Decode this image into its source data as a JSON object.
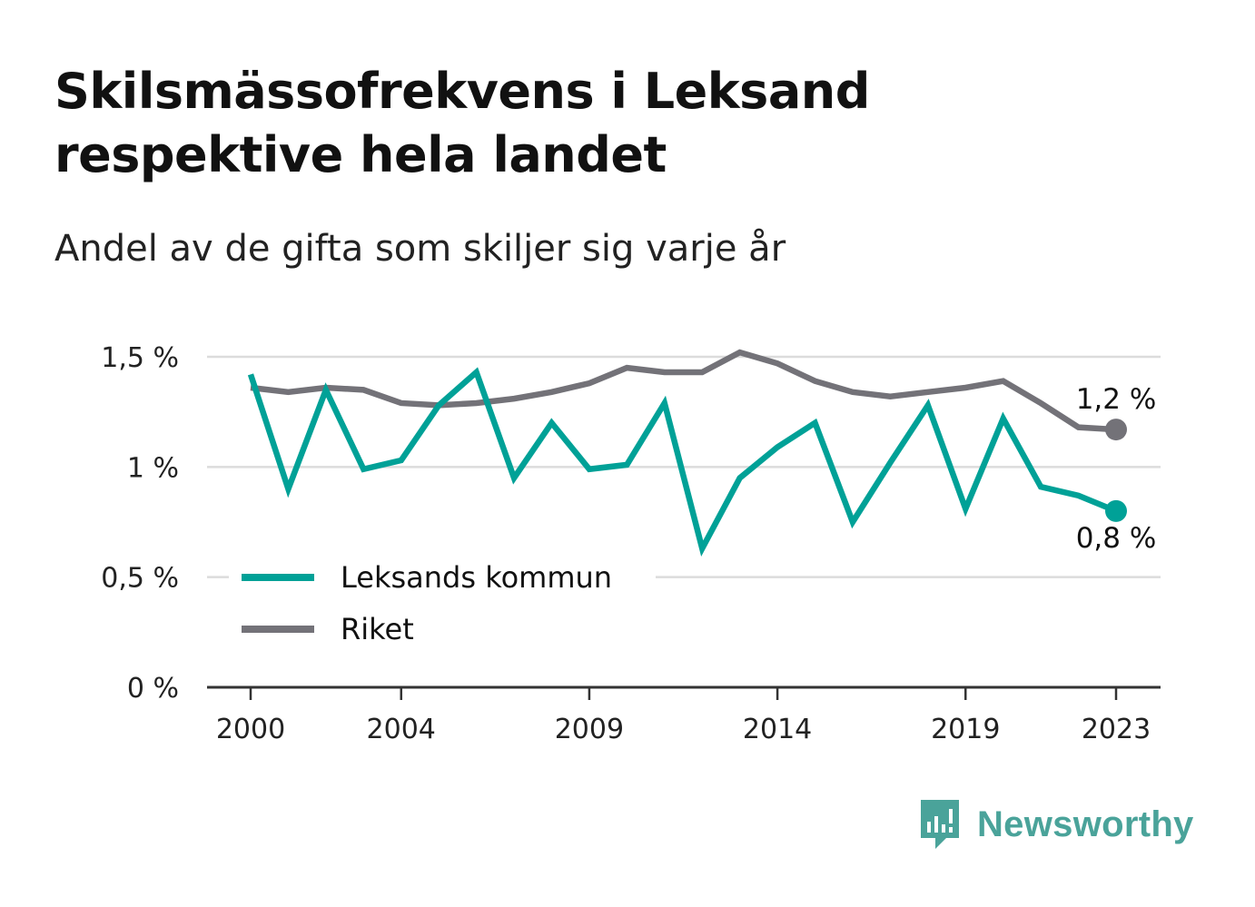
{
  "header": {
    "title_line1": "Skilsmässofrekvens i Leksand",
    "title_line2": "respektive hela landet",
    "subtitle": "Andel av de gifta som skiljer sig varje år"
  },
  "brand": {
    "name": "Newsworthy",
    "icon": "newsworthy-logo-icon",
    "color": "#4aa39a"
  },
  "chart_data": {
    "type": "line",
    "x": [
      2000,
      2001,
      2002,
      2003,
      2004,
      2005,
      2006,
      2007,
      2008,
      2009,
      2010,
      2011,
      2012,
      2013,
      2014,
      2015,
      2016,
      2017,
      2018,
      2019,
      2020,
      2021,
      2022,
      2023
    ],
    "x_tick_values": [
      2000,
      2004,
      2009,
      2014,
      2019,
      2023
    ],
    "x_tick_labels": [
      "2000",
      "2004",
      "2009",
      "2014",
      "2019",
      "2023"
    ],
    "y_tick_values": [
      0,
      0.5,
      1,
      1.5
    ],
    "y_tick_labels": [
      "0 %",
      "0,5 %",
      "1 %",
      "1,5 %"
    ],
    "ylim": [
      0,
      1.5
    ],
    "grid": true,
    "legend_position": "bottom-left",
    "series": [
      {
        "name": "Leksands kommun",
        "color": "#00a197",
        "values": [
          1.42,
          0.9,
          1.35,
          0.99,
          1.03,
          1.28,
          1.43,
          0.95,
          1.2,
          0.99,
          1.01,
          1.29,
          0.63,
          0.95,
          1.09,
          1.2,
          0.75,
          1.02,
          1.28,
          0.81,
          1.22,
          0.91,
          0.87,
          0.8
        ],
        "end_label": "0,8 %"
      },
      {
        "name": "Riket",
        "color": "#737278",
        "values": [
          1.36,
          1.34,
          1.36,
          1.35,
          1.29,
          1.28,
          1.29,
          1.31,
          1.34,
          1.38,
          1.45,
          1.43,
          1.43,
          1.52,
          1.47,
          1.39,
          1.34,
          1.32,
          1.34,
          1.36,
          1.39,
          1.29,
          1.18,
          1.17
        ],
        "end_label": "1,2 %"
      }
    ]
  }
}
